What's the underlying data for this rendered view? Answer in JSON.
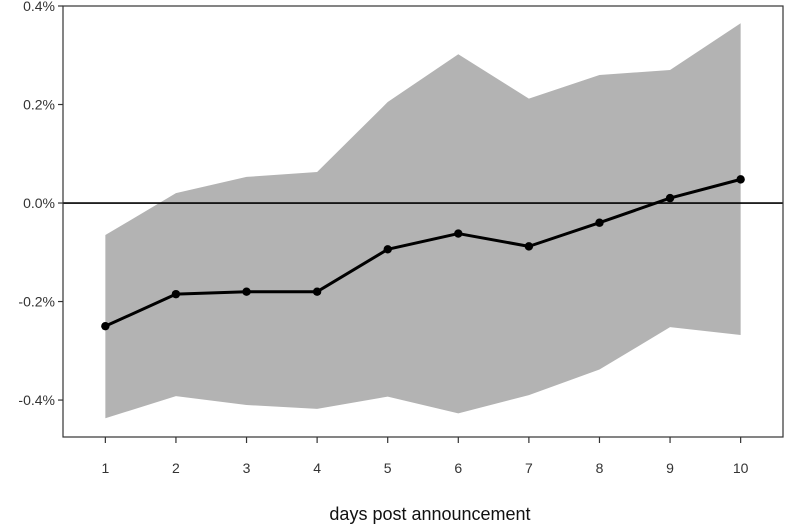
{
  "chart_data": {
    "type": "line",
    "title": "",
    "xlabel": "days post announcement",
    "ylabel": "",
    "x": [
      1,
      2,
      3,
      4,
      5,
      6,
      7,
      8,
      9,
      10
    ],
    "series": [
      {
        "values": [
          -0.25,
          -0.185,
          -0.18,
          -0.18,
          -0.094,
          -0.062,
          -0.088,
          -0.04,
          0.01,
          0.048
        ],
        "color": "#000000"
      }
    ],
    "band": {
      "upper": [
        -0.065,
        0.02,
        0.053,
        0.063,
        0.205,
        0.302,
        0.212,
        0.26,
        0.27,
        0.365
      ],
      "lower": [
        -0.437,
        -0.392,
        -0.41,
        -0.418,
        -0.393,
        -0.427,
        -0.39,
        -0.338,
        -0.252,
        -0.268
      ],
      "color": "#b3b3b3"
    },
    "reference_line": {
      "y": 0.0,
      "color": "#000000"
    },
    "ylim": [
      -0.475,
      0.4
    ],
    "xlim": [
      0.4,
      10.6
    ],
    "yticks": [
      0.4,
      0.2,
      0.0,
      -0.2,
      -0.4
    ],
    "ytick_labels": [
      "0.4%",
      "0.2%",
      "0.0%",
      "-0.2%",
      "-0.4%"
    ],
    "xtick_labels": [
      "1",
      "2",
      "3",
      "4",
      "5",
      "6",
      "7",
      "8",
      "9",
      "10"
    ],
    "grid": false,
    "legend": "none"
  }
}
